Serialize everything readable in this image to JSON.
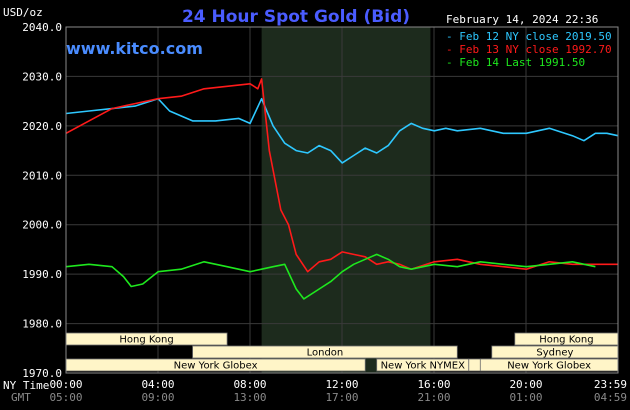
{
  "header": {
    "title": "24 Hour Spot Gold (Bid)",
    "brand": "www.kitco.com",
    "date": "February 14, 2024 22:36"
  },
  "axis_labels": {
    "y_unit": "USD/oz",
    "ny_time": "NY Time",
    "gmt": "GMT"
  },
  "sessions": [
    {
      "label": "Hong Kong",
      "start": 0,
      "end": 420
    },
    {
      "label": "London",
      "start": 330,
      "end": 1020
    },
    {
      "label": "New York Globex",
      "start": 0,
      "end": 780
    },
    {
      "label": "New York NYMEX",
      "start": 810,
      "end": 1050
    },
    {
      "label": "NY Globex",
      "start": 1050,
      "end": 1260
    },
    {
      "label": "Hong Kong",
      "start": 1170,
      "end": 1439
    },
    {
      "label": "Sydney",
      "start": 1110,
      "end": 1439
    },
    {
      "label": "New York Globex",
      "start": 1080,
      "end": 1439
    }
  ],
  "chart_data": {
    "type": "line",
    "title": "24 Hour Spot Gold (Bid)",
    "ylabel": "USD/oz",
    "xlabel": "NY Time",
    "ylim": [
      1970,
      2040
    ],
    "xlim_minutes": [
      0,
      1439
    ],
    "y_ticks": [
      "2040.0",
      "2030.0",
      "2020.0",
      "2010.0",
      "2000.0",
      "1990.0",
      "1980.0",
      "1970.0"
    ],
    "x_ticks_ny": [
      "00:00",
      "04:00",
      "08:00",
      "12:00",
      "16:00",
      "20:00",
      "23:59"
    ],
    "x_ticks_gmt": [
      "05:00",
      "09:00",
      "13:00",
      "17:00",
      "21:00",
      "01:00",
      "04:59"
    ],
    "highlight_range_minutes": [
      510,
      950
    ],
    "grid": true,
    "legend_position": "top-right",
    "series": [
      {
        "name": "Feb 12 NY close 2019.50",
        "color": "#2ec8ff",
        "x": [
          0,
          60,
          120,
          180,
          240,
          270,
          330,
          390,
          450,
          480,
          510,
          540,
          570,
          600,
          630,
          660,
          690,
          720,
          750,
          780,
          810,
          840,
          870,
          900,
          930,
          960,
          990,
          1020,
          1080,
          1140,
          1200,
          1260,
          1320,
          1350,
          1380,
          1410,
          1439
        ],
        "values": [
          2022.5,
          2023.0,
          2023.5,
          2024.0,
          2025.5,
          2023.0,
          2021.0,
          2021.0,
          2021.5,
          2020.5,
          2025.5,
          2020.0,
          2016.5,
          2015.0,
          2014.5,
          2016.0,
          2015.0,
          2012.5,
          2014.0,
          2015.5,
          2014.5,
          2016.0,
          2019.0,
          2020.5,
          2019.5,
          2019.0,
          2019.5,
          2019.0,
          2019.5,
          2018.5,
          2018.5,
          2019.5,
          2018.0,
          2017.0,
          2018.5,
          2018.5,
          2018.0
        ]
      },
      {
        "name": "Feb 13 NY close 1992.70",
        "color": "#ff1a1a",
        "x": [
          0,
          60,
          120,
          180,
          240,
          300,
          360,
          420,
          480,
          500,
          510,
          530,
          560,
          580,
          600,
          630,
          660,
          690,
          720,
          750,
          780,
          810,
          840,
          870,
          900,
          960,
          1020,
          1080,
          1140,
          1200,
          1260,
          1320,
          1380,
          1439
        ],
        "values": [
          2018.5,
          2021.0,
          2023.5,
          2024.5,
          2025.5,
          2026.0,
          2027.5,
          2028.0,
          2028.5,
          2027.5,
          2029.5,
          2015.0,
          2003.0,
          2000.0,
          1994.0,
          1990.5,
          1992.5,
          1993.0,
          1994.5,
          1994.0,
          1993.5,
          1992.0,
          1992.5,
          1992.0,
          1991.0,
          1992.5,
          1993.0,
          1992.0,
          1991.5,
          1991.0,
          1992.5,
          1992.0,
          1992.0,
          1992.0
        ]
      },
      {
        "name": "Feb 14 Last 1991.50",
        "color": "#1ee81e",
        "x": [
          0,
          60,
          120,
          150,
          170,
          200,
          240,
          300,
          360,
          420,
          480,
          510,
          540,
          570,
          600,
          620,
          660,
          690,
          720,
          750,
          780,
          810,
          840,
          870,
          900,
          960,
          1020,
          1080,
          1140,
          1200,
          1260,
          1320,
          1380
        ],
        "values": [
          1991.5,
          1992.0,
          1991.5,
          1989.5,
          1987.5,
          1988.0,
          1990.5,
          1991.0,
          1992.5,
          1991.5,
          1990.5,
          1991.0,
          1991.5,
          1992.0,
          1987.0,
          1985.0,
          1987.0,
          1988.5,
          1990.5,
          1992.0,
          1993.0,
          1994.0,
          1993.0,
          1991.5,
          1991.0,
          1992.0,
          1991.5,
          1992.5,
          1992.0,
          1991.5,
          1992.0,
          1992.5,
          1991.5
        ]
      }
    ]
  }
}
